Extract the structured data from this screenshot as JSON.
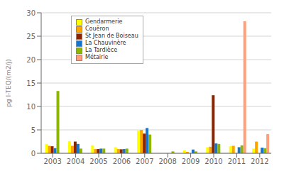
{
  "chart_data": {
    "type": "bar",
    "ylabel": "pg I-TEQ/(m2/j)",
    "categories": [
      "2003",
      "2004",
      "2005",
      "2006",
      "2007",
      "2008",
      "2009",
      "2010",
      "2011",
      "2012"
    ],
    "series": [
      {
        "name": "Gendarmerie",
        "color": "#FFFF00",
        "values": [
          2.0,
          2.6,
          1.7,
          1.3,
          4.8,
          0.0,
          0.6,
          1.3,
          1.5,
          1.0
        ]
      },
      {
        "name": "Couëron",
        "color": "#FFA500",
        "values": [
          1.6,
          1.6,
          0.9,
          0.9,
          5.0,
          0.0,
          0.3,
          1.4,
          1.6,
          2.5
        ]
      },
      {
        "name": "St Jean de Boiseau",
        "color": "#8B2500",
        "values": [
          1.5,
          2.5,
          0.9,
          0.85,
          4.2,
          0.0,
          0.0,
          12.4,
          0.0,
          0.0
        ]
      },
      {
        "name": "La Chauvinère",
        "color": "#1874CD",
        "values": [
          1.1,
          2.0,
          1.0,
          0.9,
          5.4,
          0.0,
          0.8,
          2.1,
          1.3,
          1.2
        ]
      },
      {
        "name": "La Tardièce",
        "color": "#8DB600",
        "values": [
          13.3,
          1.0,
          1.0,
          1.0,
          4.0,
          0.4,
          0.4,
          2.0,
          1.7,
          1.1
        ]
      },
      {
        "name": "Métairie",
        "color": "#FFA07A",
        "values": [
          0.0,
          0.0,
          0.0,
          0.0,
          0.0,
          0.0,
          0.0,
          0.0,
          28.2,
          4.1
        ]
      }
    ],
    "ylim": [
      0,
      30
    ],
    "yticks": [
      0,
      5,
      10,
      15,
      20,
      25,
      30
    ],
    "grid": true,
    "legend": "upper left"
  }
}
